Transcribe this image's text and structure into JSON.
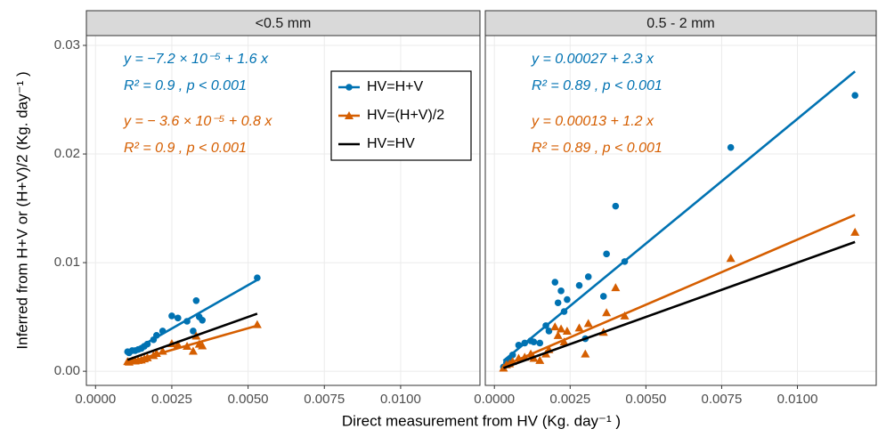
{
  "chart_data": [
    {
      "type": "scatter",
      "title": "<0.5 mm",
      "xlabel": "Direct measurement from HV (Kg. day⁻¹ )",
      "ylabel": "Inferred from H+V or (H+V)/2 (Kg. day⁻¹ )",
      "xlim": [
        -0.0003,
        0.0126
      ],
      "ylim": [
        -0.0013,
        0.0309
      ],
      "xticks": [
        {
          "value": 0,
          "label": "0.0000"
        },
        {
          "value": 0.0025,
          "label": "0.0025"
        },
        {
          "value": 0.005,
          "label": "0.0050"
        },
        {
          "value": 0.0075,
          "label": "0.0075"
        },
        {
          "value": 0.01,
          "label": "0.0100"
        }
      ],
      "yticks": [
        {
          "value": 0,
          "label": "0.00"
        },
        {
          "value": 0.01,
          "label": "0.01"
        },
        {
          "value": 0.02,
          "label": "0.02"
        },
        {
          "value": 0.03,
          "label": "0.03"
        }
      ],
      "grid": true,
      "legend": "top-right",
      "x": [
        0.00105,
        0.0011,
        0.0012,
        0.0013,
        0.0014,
        0.0015,
        0.0016,
        0.0017,
        0.0019,
        0.002,
        0.0022,
        0.0025,
        0.0027,
        0.003,
        0.0032,
        0.0033,
        0.0034,
        0.0035,
        0.0053
      ],
      "series": [
        {
          "name": "HV=H+V",
          "color": "#0072B2",
          "marker": "circle",
          "values": [
            0.0018,
            0.0017,
            0.0019,
            0.0019,
            0.002,
            0.0021,
            0.0023,
            0.0025,
            0.0029,
            0.0033,
            0.0037,
            0.0051,
            0.0049,
            0.0046,
            0.0037,
            0.0065,
            0.005,
            0.0047,
            0.0086
          ],
          "fit": {
            "x": [
              0.00105,
              0.0053
            ],
            "values": [
              0.00161,
              0.00841
            ]
          }
        },
        {
          "name": "HV=(H+V)/2",
          "color": "#D55E00",
          "marker": "triangle",
          "values": [
            0.0009,
            0.00085,
            0.00095,
            0.00095,
            0.001,
            0.00105,
            0.00115,
            0.00125,
            0.00145,
            0.00165,
            0.00185,
            0.00255,
            0.00245,
            0.0023,
            0.00185,
            0.00325,
            0.0025,
            0.00235,
            0.0043
          ],
          "fit": {
            "x": [
              0.00105,
              0.0053
            ],
            "values": [
              0.0008,
              0.0042
            ]
          }
        },
        {
          "name": "HV=HV",
          "color": "#000000",
          "fit": {
            "x": [
              0.00105,
              0.0053
            ],
            "values": [
              0.00105,
              0.0053
            ]
          }
        }
      ],
      "annotations": [
        {
          "text": "y = −7.2 × 10⁻⁵ + 1.6 x",
          "color": "#0072B2"
        },
        {
          "text": "R² = 0.9 , p < 0.001",
          "color": "#0072B2"
        },
        {
          "text": "y = − 3.6 × 10⁻⁵ + 0.8 x",
          "color": "#D55E00"
        },
        {
          "text": "R² = 0.9 , p < 0.001",
          "color": "#D55E00"
        }
      ]
    },
    {
      "type": "scatter",
      "title": "0.5 - 2 mm",
      "xlim": [
        -0.0003,
        0.0126
      ],
      "ylim": [
        -0.0013,
        0.0309
      ],
      "xticks": [
        {
          "value": 0,
          "label": "0.0000"
        },
        {
          "value": 0.0025,
          "label": "0.0025"
        },
        {
          "value": 0.005,
          "label": "0.0050"
        },
        {
          "value": 0.0075,
          "label": "0.0075"
        },
        {
          "value": 0.01,
          "label": "0.0100"
        }
      ],
      "grid": true,
      "x": [
        0.0003,
        0.0004,
        0.0005,
        0.0006,
        0.0008,
        0.001,
        0.0012,
        0.0013,
        0.0015,
        0.0017,
        0.0018,
        0.002,
        0.0021,
        0.0022,
        0.0023,
        0.0024,
        0.0028,
        0.003,
        0.0031,
        0.0036,
        0.0037,
        0.004,
        0.0043,
        0.0078,
        0.0119
      ],
      "series": [
        {
          "color": "#0072B2",
          "marker": "circle",
          "values": [
            0.0004,
            0.0008,
            0.0011,
            0.0015,
            0.0024,
            0.0026,
            0.0028,
            0.0027,
            0.0026,
            0.0042,
            0.0037,
            0.0082,
            0.0063,
            0.0074,
            0.0055,
            0.0066,
            0.0079,
            0.003,
            0.0087,
            0.0069,
            0.0108,
            0.0152,
            0.0101,
            0.0206,
            0.0254
          ],
          "fit": {
            "x": [
              0.0003,
              0.0119
            ],
            "values": [
              0.00096,
              0.0276
            ]
          }
        },
        {
          "color": "#D55E00",
          "marker": "triangle",
          "values": [
            0.0003,
            0.0006,
            0.0007,
            0.0009,
            0.0012,
            0.0013,
            0.0016,
            0.0012,
            0.001,
            0.0016,
            0.002,
            0.0041,
            0.0033,
            0.0039,
            0.0027,
            0.0037,
            0.004,
            0.0016,
            0.0044,
            0.0036,
            0.0054,
            0.0077,
            0.0051,
            0.0104,
            0.0128
          ],
          "fit": {
            "x": [
              0.0003,
              0.0119
            ],
            "values": [
              0.00049,
              0.0144
            ]
          }
        },
        {
          "color": "#000000",
          "fit": {
            "x": [
              0.0003,
              0.0119
            ],
            "values": [
              0.0003,
              0.0119
            ]
          }
        }
      ],
      "annotations": [
        {
          "text": "y = 0.00027 + 2.3 x",
          "color": "#0072B2"
        },
        {
          "text": "R² = 0.89 , p < 0.001",
          "color": "#0072B2"
        },
        {
          "text": "y = 0.00013 + 1.2 x",
          "color": "#D55E00"
        },
        {
          "text": "R² = 0.89 , p < 0.001",
          "color": "#D55E00"
        }
      ]
    }
  ]
}
